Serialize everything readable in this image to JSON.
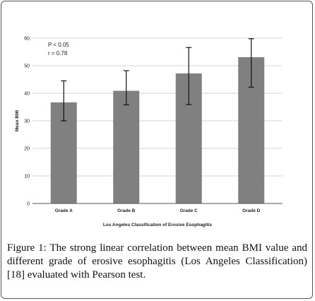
{
  "chart_data": {
    "type": "bar",
    "categories": [
      "Grade A",
      "Grade B",
      "Grade C",
      "Grade D"
    ],
    "values": [
      36.7,
      40.9,
      47.2,
      53.1
    ],
    "error_upper": [
      44.5,
      48.2,
      56.6,
      59.8
    ],
    "error_lower": [
      30.0,
      35.8,
      35.9,
      42.2
    ],
    "yticks": [
      0,
      10,
      20,
      30,
      40,
      50,
      60
    ],
    "ylim": [
      0,
      60
    ],
    "xlabel": "Los Angeles Classification of Erosive Esophagitis",
    "ylabel": "Mean BMI",
    "annotations": [
      "P < 0.05",
      "r = 0.78"
    ],
    "grid": true,
    "bar_color": "#808080",
    "grid_color": "#c8c8c8"
  },
  "caption": {
    "label": "Figure 1:",
    "text": " The strong linear correlation between mean BMI value and different grade of erosive esophagitis (Los Angeles Classification) [18] evaluated with Pearson test."
  }
}
